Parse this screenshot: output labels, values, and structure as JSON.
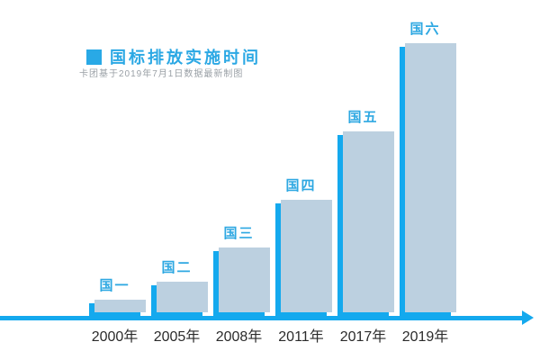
{
  "legend": {
    "title": "国标排放实施时间",
    "subtitle": "卡团基于2019年7月1日数据最新制图",
    "swatch_color": "#29a9e6"
  },
  "colors": {
    "bar": "#14a9ee",
    "bar_shadow": "#bcd0e0",
    "axis": "#14a9ee",
    "accent_text": "#2ea8e2",
    "x_label_text": "#2b2b2b",
    "subtitle_text": "#9aa0a6",
    "background": "#ffffff"
  },
  "chart_data": {
    "type": "bar",
    "title": "国标排放实施时间",
    "subtitle": "卡团基于2019年7月1日数据最新制图",
    "categories": [
      "2000年",
      "2005年",
      "2008年",
      "2011年",
      "2017年",
      "2019年"
    ],
    "bar_labels": [
      "国一",
      "国二",
      "国三",
      "国四",
      "国五",
      "国六"
    ],
    "series": [
      {
        "name": "国标排放实施时间",
        "values": [
          14,
          34,
          72,
          125,
          201,
          299
        ]
      }
    ],
    "value_note": "no y-axis shown; values are relative bar heights in screen px",
    "has_y_axis": false,
    "grid": false,
    "legend_position": "top-left",
    "bar_color": "#14a9ee",
    "axis_arrow": "right"
  }
}
